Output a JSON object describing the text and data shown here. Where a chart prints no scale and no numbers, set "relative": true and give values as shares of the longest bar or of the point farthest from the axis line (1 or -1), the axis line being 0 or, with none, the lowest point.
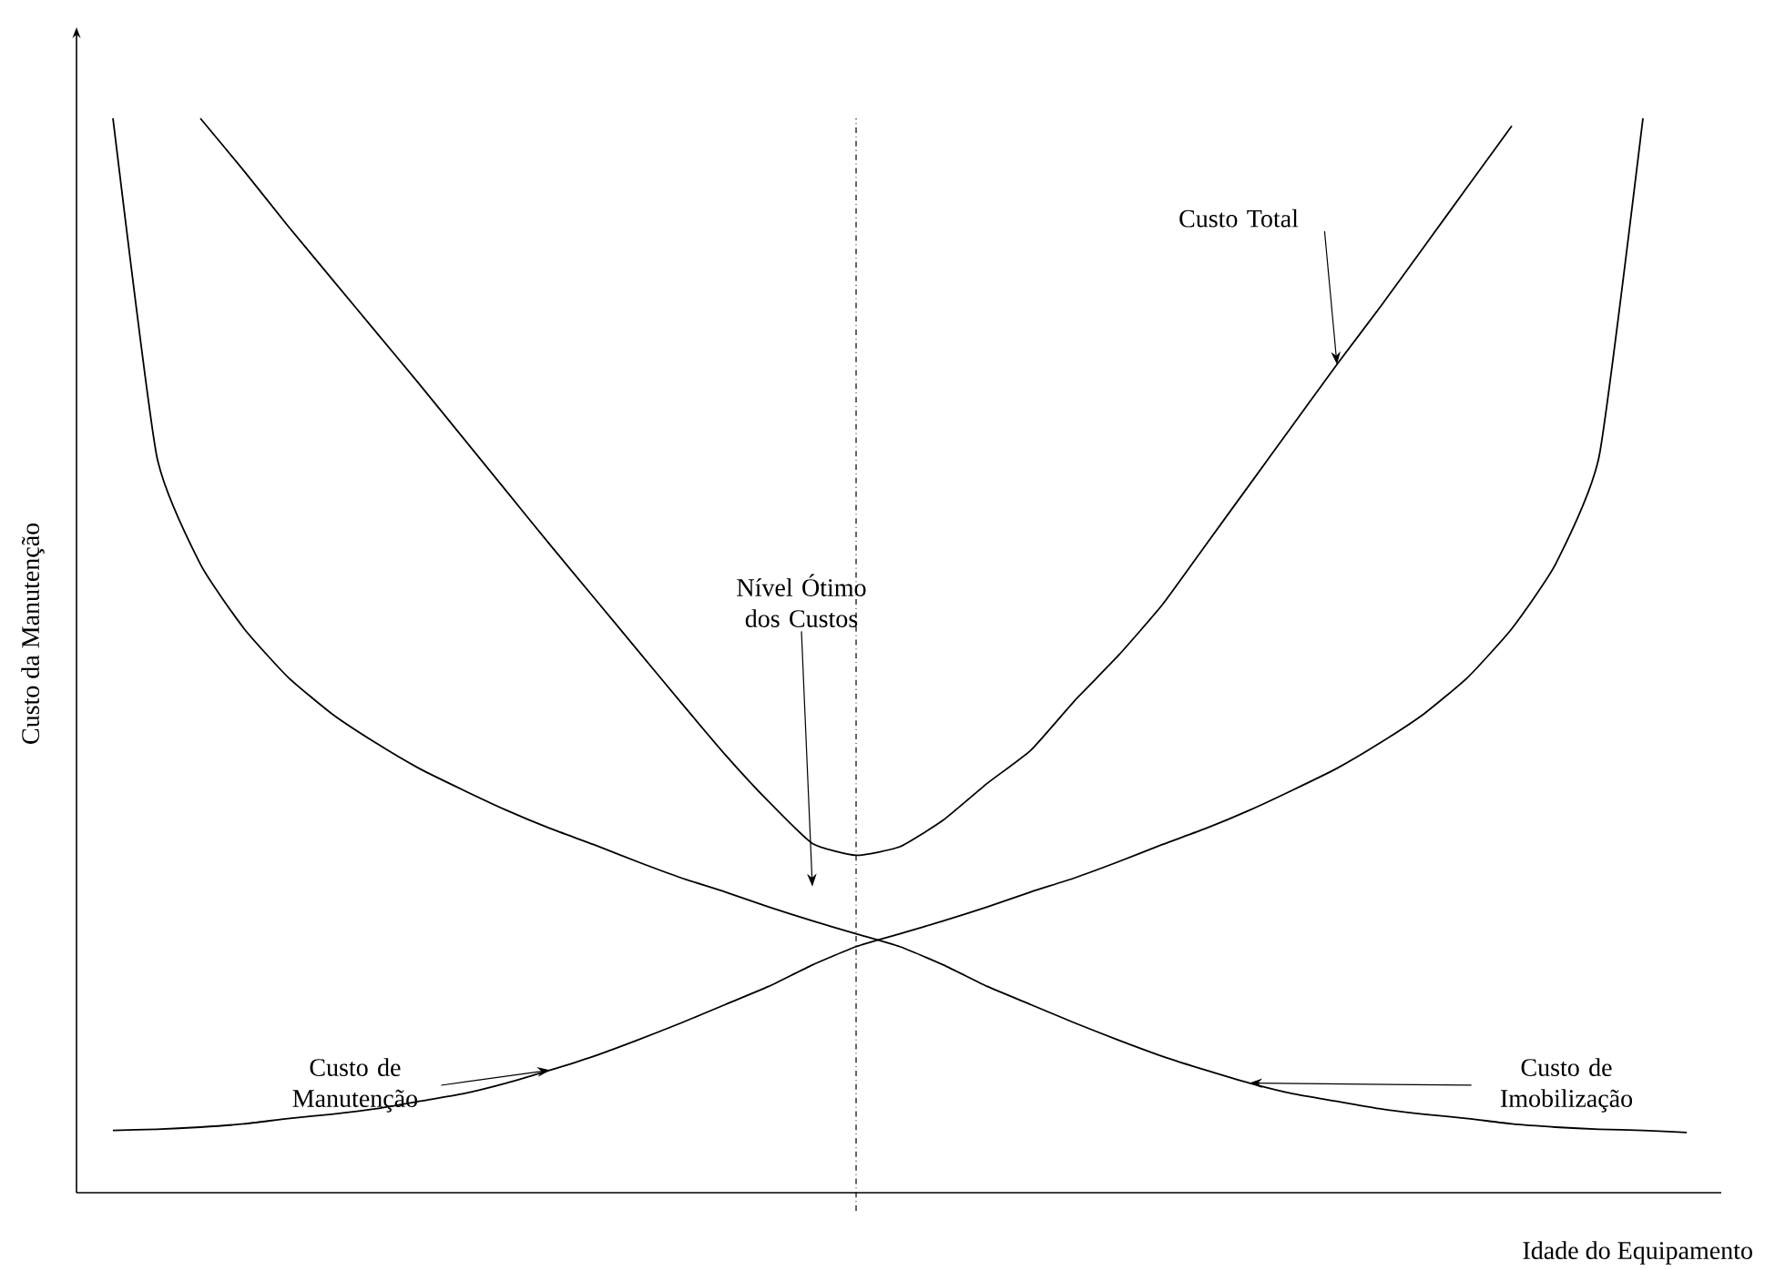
{
  "chart_data": {
    "type": "line",
    "relative": true,
    "xlabel": "Idade do Equipamento",
    "ylabel": "Custo da Manutenção",
    "categories": [
      null,
      null,
      null,
      null,
      null,
      null,
      null,
      null,
      null,
      null,
      null,
      null,
      null,
      null,
      null,
      null,
      null,
      null,
      null,
      null,
      null,
      null,
      null,
      null,
      null,
      null,
      null,
      null,
      null,
      null,
      null,
      null,
      null,
      null,
      null,
      null,
      null
    ],
    "series": [
      {
        "color": "#000000",
        "values": [
          null,
          null,
          1.0,
          0.951,
          0.9,
          0.851,
          0.802,
          0.753,
          0.703,
          0.653,
          0.603,
          0.554,
          0.505,
          0.456,
          0.408,
          0.364,
          0.325,
          0.314,
          0.322,
          0.347,
          0.381,
          0.412,
          0.458,
          0.5,
          0.547,
          0.603,
          0.659,
          0.715,
          0.771,
          0.825,
          0.881,
          0.937,
          0.993,
          null,
          null,
          null,
          null
        ]
      },
      {
        "color": "#000000",
        "values": [
          0.058,
          0.059,
          0.061,
          0.064,
          0.069,
          0.073,
          0.078,
          0.085,
          0.092,
          0.102,
          0.114,
          0.127,
          0.142,
          0.158,
          0.175,
          0.192,
          0.212,
          0.229,
          0.241,
          0.253,
          0.266,
          0.28,
          0.293,
          0.308,
          0.324,
          0.339,
          0.356,
          0.375,
          0.395,
          0.419,
          0.446,
          0.48,
          0.525,
          0.585,
          0.686,
          1.0,
          null
        ]
      },
      {
        "color": "#000000",
        "values": [
          1.0,
          0.686,
          0.585,
          0.525,
          0.48,
          0.446,
          0.419,
          0.395,
          0.375,
          0.356,
          0.339,
          0.324,
          0.308,
          0.293,
          0.28,
          0.266,
          0.253,
          0.241,
          0.229,
          0.212,
          0.192,
          0.175,
          0.158,
          0.142,
          0.127,
          0.114,
          0.102,
          0.092,
          0.085,
          0.078,
          0.073,
          0.069,
          0.064,
          0.061,
          0.059,
          0.058,
          0.056
        ]
      }
    ],
    "annotations": [
      "Nível Ótimo dos Custos",
      "Custo Total",
      "Custo de Manutenção",
      "Custo de Imobilização"
    ],
    "marker": "none",
    "line_style": "solid"
  }
}
